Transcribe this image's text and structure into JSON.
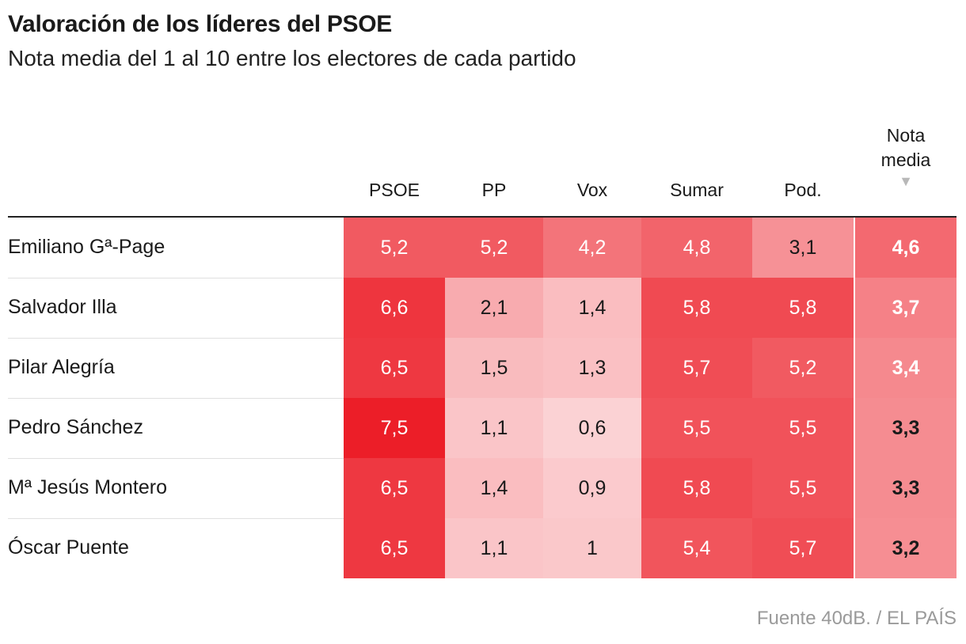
{
  "title": "Valoración de los líderes del PSOE",
  "subtitle": "Nota media del 1 al 10 entre los electores de cada partido",
  "source": "Fuente 40dB. / EL PAÍS",
  "mean_header": {
    "line1": "Nota",
    "line2": "media",
    "sort_icon": "▼"
  },
  "colors": {
    "heat_base": "#ee1c25",
    "rule": "#222222",
    "source_text": "#9a9a9a"
  },
  "chart_data": {
    "type": "heatmap",
    "title": "Valoración de los líderes del PSOE",
    "subtitle": "Nota media del 1 al 10 entre los electores de cada partido",
    "columns": [
      "PSOE",
      "PP",
      "Vox",
      "Sumar",
      "Pod."
    ],
    "rows": [
      {
        "name": "Emiliano Gª-Page",
        "values": [
          "5,2",
          "5,2",
          "4,2",
          "4,8",
          "3,1"
        ],
        "mean": "4,6"
      },
      {
        "name": "Salvador Illa",
        "values": [
          "6,6",
          "2,1",
          "1,4",
          "5,8",
          "5,8"
        ],
        "mean": "3,7"
      },
      {
        "name": "Pilar Alegría",
        "values": [
          "6,5",
          "1,5",
          "1,3",
          "5,7",
          "5,2"
        ],
        "mean": "3,4"
      },
      {
        "name": "Pedro Sánchez",
        "values": [
          "7,5",
          "1,1",
          "0,6",
          "5,5",
          "5,5"
        ],
        "mean": "3,3"
      },
      {
        "name": "Mª Jesús Montero",
        "values": [
          "6,5",
          "1,4",
          "0,9",
          "5,8",
          "5,5"
        ],
        "mean": "3,3"
      },
      {
        "name": "Óscar Puente",
        "values": [
          "6,5",
          "1,1",
          "1",
          "5,4",
          "5,7"
        ],
        "mean": "3,2"
      }
    ],
    "mean_column_label": "Nota media",
    "sorted_by": "Nota media",
    "sort_order": "descending"
  }
}
